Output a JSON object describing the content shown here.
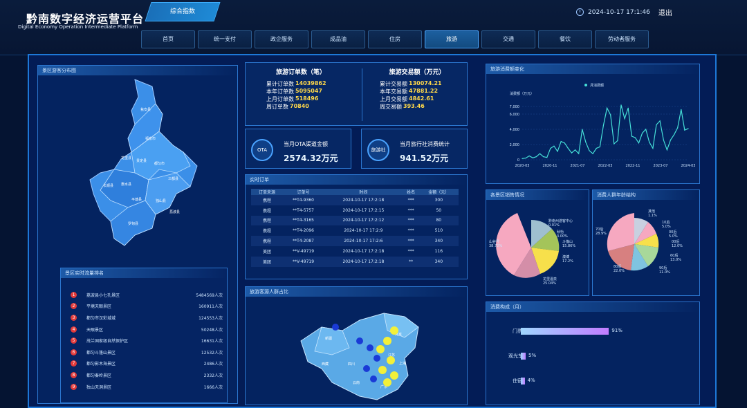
{
  "header": {
    "title": "黔南数字经济运营平台",
    "subtitle": "Digital Economy Operation Intermediate Platform",
    "active_module": "综合指数",
    "datetime": "2024-10-17 17:1:46",
    "logout": "退出"
  },
  "nav": {
    "tabs": [
      {
        "label": "首页",
        "active": false
      },
      {
        "label": "统一支付",
        "active": false
      },
      {
        "label": "政企服务",
        "active": false
      },
      {
        "label": "成品油",
        "active": false
      },
      {
        "label": "住房",
        "active": false
      },
      {
        "label": "旅游",
        "active": true
      },
      {
        "label": "交通",
        "active": false
      },
      {
        "label": "餐饮",
        "active": false
      },
      {
        "label": "劳动者服务",
        "active": false
      }
    ]
  },
  "map_panel": {
    "title": "景区游客分布图",
    "regions": [
      "荔波县",
      "独山县",
      "三都县",
      "平塘县",
      "罗甸县",
      "长顺县",
      "惠水县",
      "龙里县",
      "贵定县",
      "都匀市",
      "福泉市",
      "瓮安县"
    ]
  },
  "ranking": {
    "title": "景区实时流量排名",
    "rows": [
      {
        "rank": "1",
        "name": "荔波县小七孔景区",
        "value": "5484569人次"
      },
      {
        "rank": "2",
        "name": "平塘天眼景区",
        "value": "160911人次"
      },
      {
        "rank": "3",
        "name": "都匀市汉彩城城",
        "value": "124553人次"
      },
      {
        "rank": "4",
        "name": "天眼景区",
        "value": "50248人次"
      },
      {
        "rank": "5",
        "name": "茂兰国家级自然保护区",
        "value": "16631人次"
      },
      {
        "rank": "6",
        "name": "都匀斗篷山景区",
        "value": "12532人次"
      },
      {
        "rank": "7",
        "name": "都匀影木海景区",
        "value": "2486人次"
      },
      {
        "rank": "8",
        "name": "都匀秦岭景区",
        "value": "2332人次"
      },
      {
        "rank": "9",
        "name": "独山天洞景区",
        "value": "1666人次"
      }
    ]
  },
  "orders_summary": {
    "title": "旅游订单数（笔）",
    "lines": [
      {
        "label": "累计订单数",
        "value": "14039862"
      },
      {
        "label": "本年订单数",
        "value": "5095047"
      },
      {
        "label": "上月订单数",
        "value": "518496"
      },
      {
        "label": "周订单数",
        "value": "70840"
      }
    ]
  },
  "amount_summary": {
    "title": "旅游交易额（万元）",
    "lines": [
      {
        "label": "累计交易额",
        "value": "130074.21"
      },
      {
        "label": "本年交易额",
        "value": "47881.22"
      },
      {
        "label": "上月交易额",
        "value": "4842.61"
      },
      {
        "label": "周交易额",
        "value": "393.46"
      }
    ]
  },
  "kpi": {
    "ota": {
      "badge": "OTA",
      "label": "当月OTA渠道金额",
      "value": "2574.32万元"
    },
    "agency": {
      "badge": "旅游社",
      "label": "当月旅行社消费统计",
      "value": "941.52万元"
    }
  },
  "realtime_orders": {
    "title": "实时订单",
    "columns": [
      "订单来源",
      "订单号",
      "时间",
      "姓名",
      "金额（元）"
    ],
    "rows": [
      [
        "携程",
        "**T4-9360",
        "2024-10-17 17:2:18",
        "***",
        "300"
      ],
      [
        "携程",
        "**T4-5757",
        "2024-10-17 17:2:15",
        "***",
        "50"
      ],
      [
        "携程",
        "**T4-3165",
        "2024-10-17 17:2:12",
        "***",
        "80"
      ],
      [
        "携程",
        "**T4-2096",
        "2024-10-17 17:2:9",
        "***",
        "510"
      ],
      [
        "携程",
        "**T4-2087",
        "2024-10-17 17:2:6",
        "***",
        "340"
      ],
      [
        "美团",
        "**V-49719",
        "2024-10-17 17:2:18",
        "***",
        "116"
      ],
      [
        "美团",
        "**V-49719",
        "2024-10-17 17:2:18",
        "**",
        "340"
      ]
    ]
  },
  "origin_panel": {
    "title": "旅游客源人群占比",
    "province_labels": [
      "新疆",
      "西藏",
      "四川",
      "云南",
      "北京",
      "上海",
      "江苏",
      "广东"
    ]
  },
  "consumption_chart": {
    "title": "旅游消费额变化",
    "legend": "月消费额",
    "ylabel": "消费额（万元）"
  },
  "scenic_sales": {
    "title": "各景区销售情况",
    "labels": [
      {
        "name": "黔南州游客中心",
        "pct": "0.01%"
      },
      {
        "name": "秋怡",
        "pct": "3.00%"
      },
      {
        "name": "斗篷山",
        "pct": "15.86%"
      },
      {
        "name": "澳博",
        "pct": "17.2%"
      },
      {
        "name": "龙里温泉",
        "pct": "25.04%"
      },
      {
        "name": "山谷号",
        "pct": "38.72%"
      }
    ]
  },
  "age_structure": {
    "title": "消费人群年龄结构",
    "labels": [
      {
        "name": "其他",
        "pct": "1.1%"
      },
      {
        "name": "10后",
        "pct": "5.0%"
      },
      {
        "name": "00后",
        "pct": "5.0%"
      },
      {
        "name": "00后",
        "pct": "12.0%"
      },
      {
        "name": "60后",
        "pct": "13.0%"
      },
      {
        "name": "90后",
        "pct": "11.0%"
      },
      {
        "name": "80后",
        "pct": "22.0%"
      },
      {
        "name": "70后",
        "pct": "28.9%"
      }
    ]
  },
  "consumption_structure": {
    "title": "消费构成（月）",
    "rows": [
      {
        "label": "门票",
        "value": 91,
        "text": "91%"
      },
      {
        "label": "观光车",
        "value": 5,
        "text": "5%"
      },
      {
        "label": "住宿",
        "value": 4,
        "text": "4%"
      }
    ]
  },
  "chart_data": {
    "type": "line",
    "title": "旅游消费额变化",
    "legend": "月消费额",
    "ylabel": "消费额（万元）",
    "xlabel": "",
    "ylim": [
      0,
      8000
    ],
    "y_ticks": [
      "0",
      "2,000",
      "4,000",
      "6,000",
      "7,000"
    ],
    "x_ticks": [
      "2020-03",
      "2020-11",
      "2021-07",
      "2022-03",
      "2022-11",
      "2023-07",
      "2024-03"
    ],
    "series": [
      {
        "name": "月消费额",
        "values": [
          150,
          220,
          500,
          250,
          400,
          800,
          400,
          300,
          1500,
          1800,
          1100,
          2400,
          2200,
          1500,
          900,
          1300,
          800,
          4000,
          2300,
          1200,
          800,
          1500,
          1700,
          4500,
          6800,
          5900,
          2100,
          2500,
          7200,
          5400,
          6800,
          3100,
          2900,
          2200,
          3500,
          4000,
          2300,
          1500,
          4600,
          5100,
          2600,
          1300,
          2600,
          3300,
          4200,
          6600,
          3900,
          4100
        ]
      }
    ]
  }
}
